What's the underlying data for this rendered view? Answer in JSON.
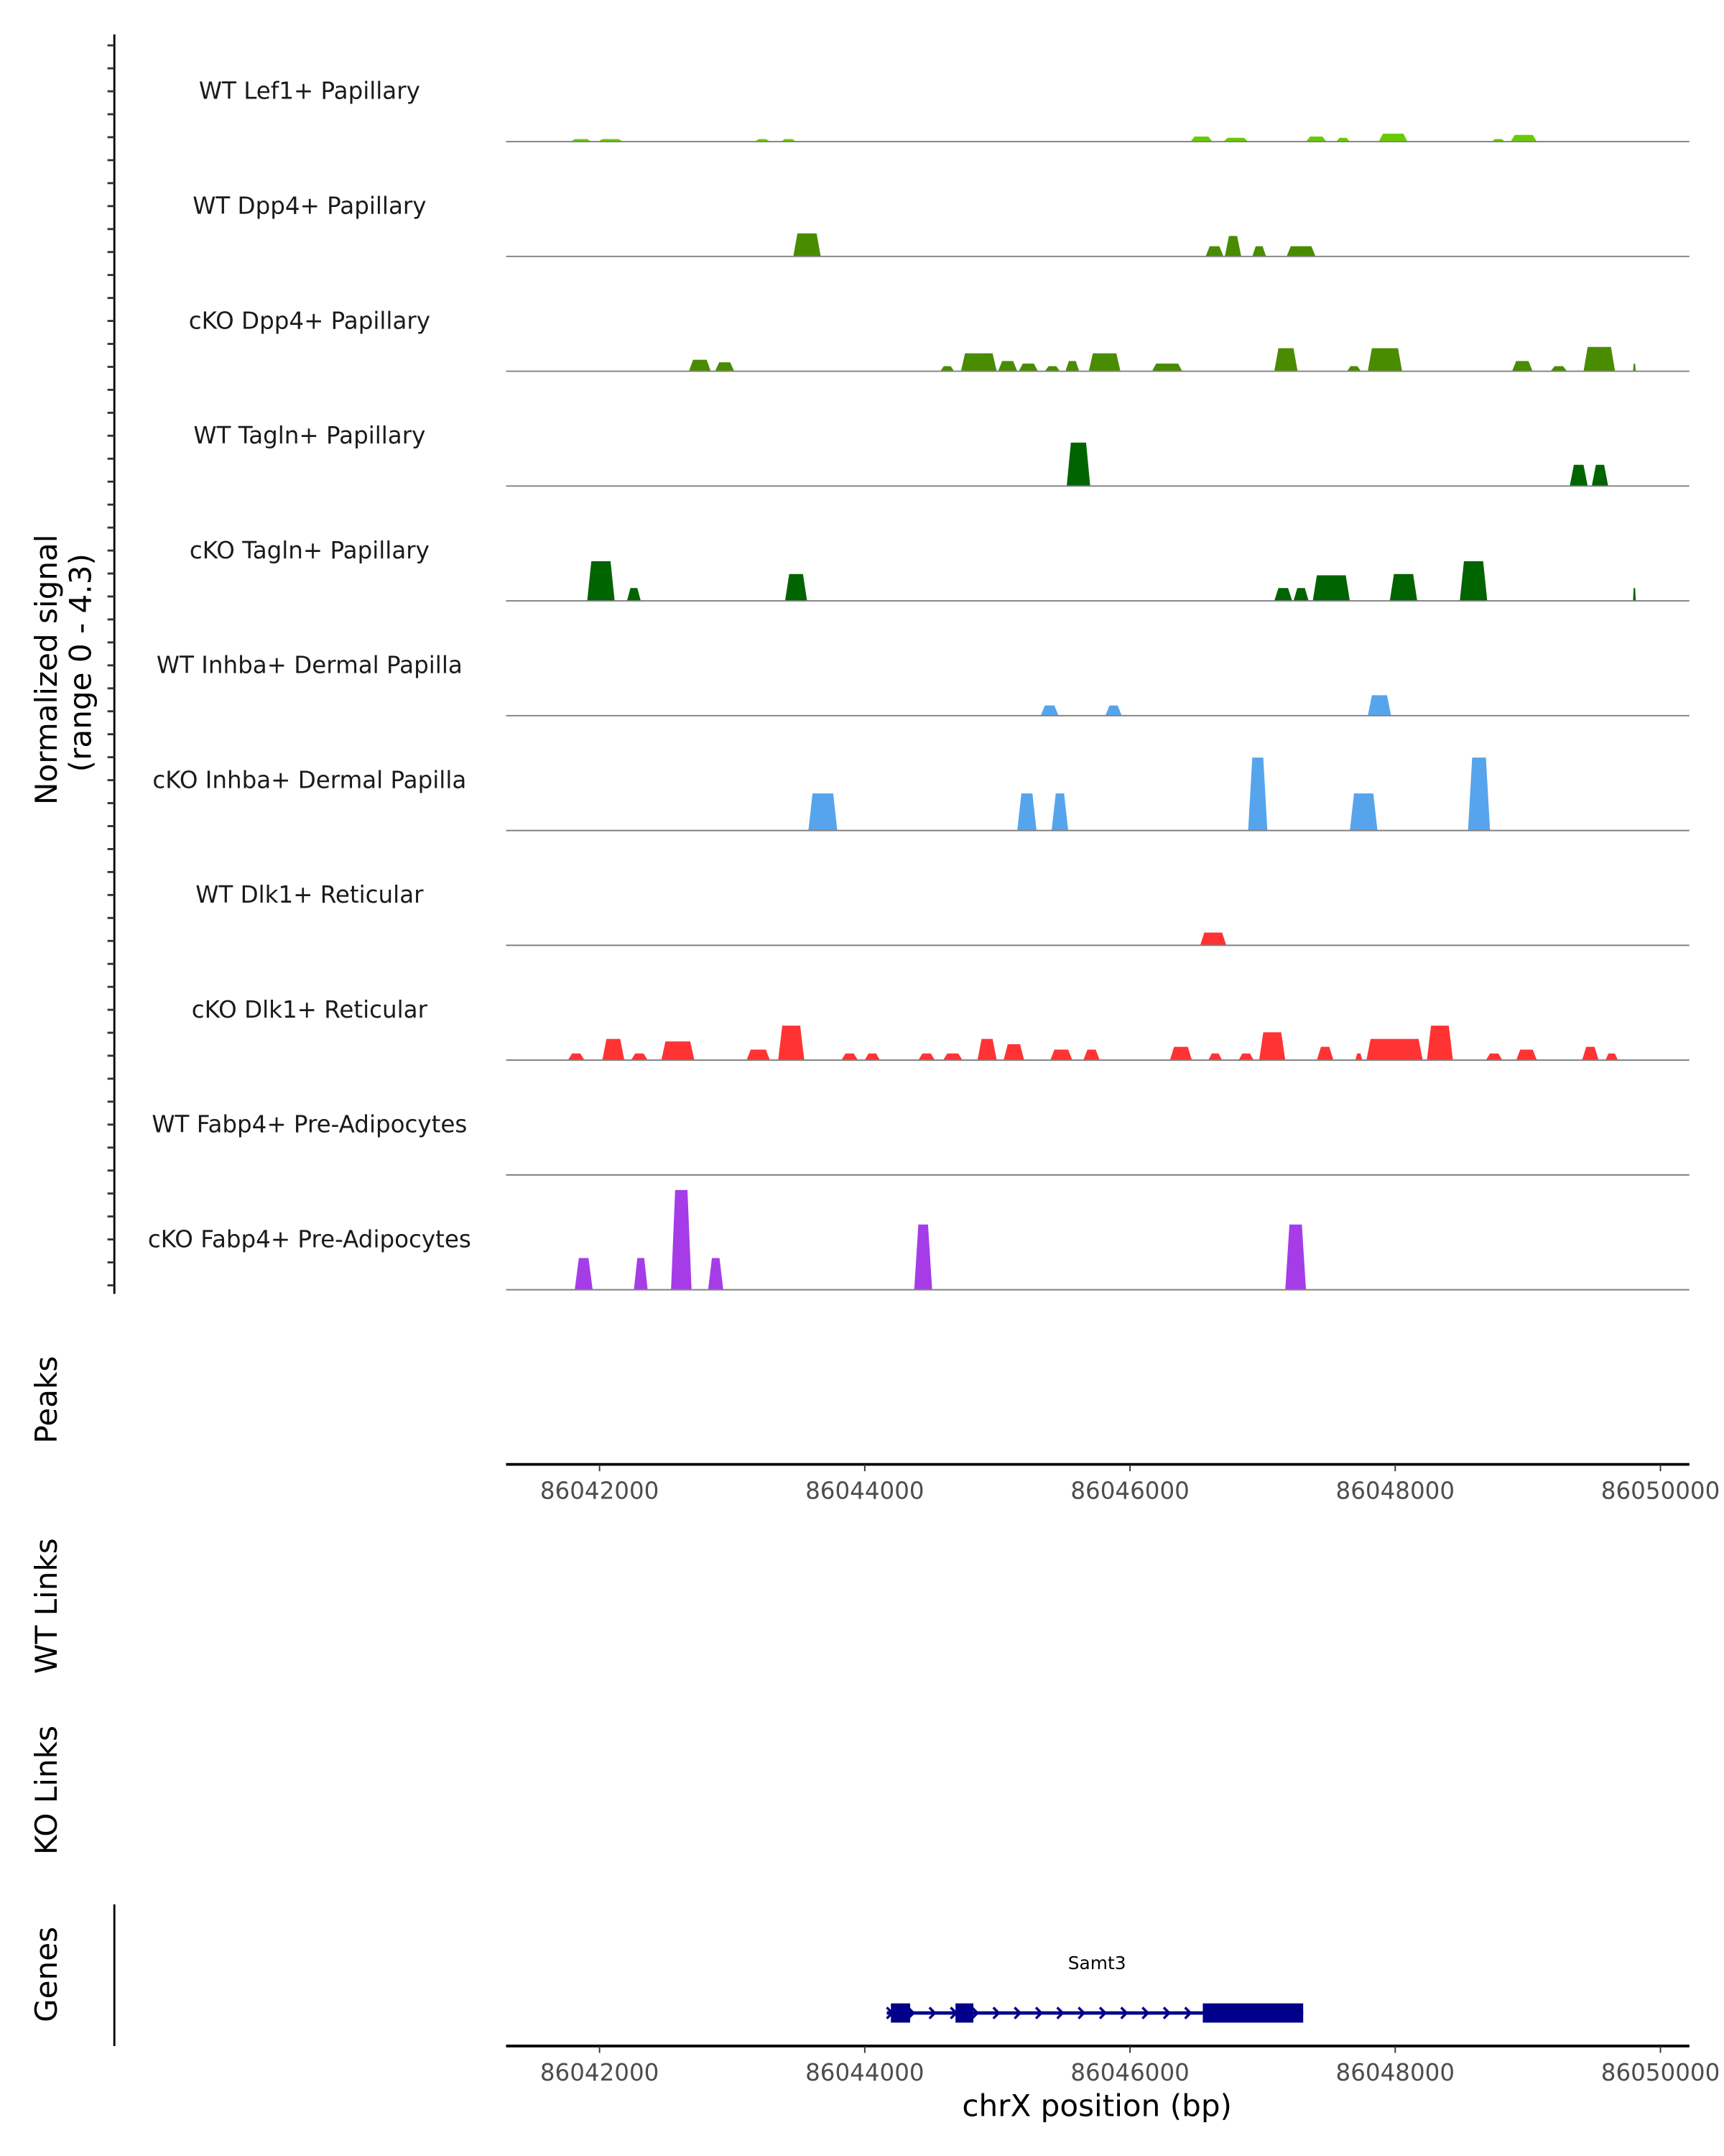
{
  "chart_data": {
    "type": "area",
    "title": "",
    "ylabel": [
      "Normalized signal",
      "(range 0 - 4.3)"
    ],
    "ylim": [
      0,
      4.3
    ],
    "xlabel": "chrX position (bp)",
    "xlim": [
      86041295,
      86050218
    ],
    "xticks": [
      86042000,
      86044000,
      86046000,
      86048000,
      86050000
    ],
    "xtick_labels": [
      "86042000",
      "86044000",
      "86046000",
      "86048000",
      "86050000"
    ],
    "offset": 86000000,
    "side_labels": {
      "peaks": "Peaks",
      "wt_links": "WT Links",
      "ko_links": "KO Links",
      "genes": "Genes"
    },
    "tracks": [
      {
        "name": "WT Lef1+ Papillary",
        "color": "#66CC00",
        "peaks": [
          [
            41782,
            41938,
            0.1
          ],
          [
            41990,
            42176,
            0.1
          ],
          [
            43171,
            43285,
            0.1
          ],
          [
            43368,
            43482,
            0.1
          ],
          [
            46456,
            46622,
            0.2
          ],
          [
            46705,
            46891,
            0.15
          ],
          [
            47327,
            47482,
            0.2
          ],
          [
            47555,
            47658,
            0.15
          ],
          [
            47876,
            48093,
            0.31
          ],
          [
            48726,
            48829,
            0.1
          ],
          [
            48870,
            49068,
            0.26
          ]
        ]
      },
      {
        "name": "WT Dpp4+ Papillary",
        "color": "#4A8C00",
        "peaks": [
          [
            43461,
            43668,
            0.9
          ],
          [
            46570,
            46705,
            0.4
          ],
          [
            46715,
            46839,
            0.8
          ],
          [
            46922,
            47026,
            0.4
          ],
          [
            47181,
            47399,
            0.4
          ]
        ]
      },
      {
        "name": "cKO Dpp4+ Papillary",
        "color": "#4A8C00",
        "peaks": [
          [
            42674,
            42839,
            0.45
          ],
          [
            42871,
            43016,
            0.35
          ],
          [
            44570,
            44674,
            0.2
          ],
          [
            44725,
            44995,
            0.7
          ],
          [
            45005,
            45150,
            0.4
          ],
          [
            45161,
            45306,
            0.3
          ],
          [
            45358,
            45472,
            0.2
          ],
          [
            45513,
            45617,
            0.4
          ],
          [
            45689,
            45928,
            0.7
          ],
          [
            46166,
            46394,
            0.3
          ],
          [
            47088,
            47264,
            0.9
          ],
          [
            47637,
            47741,
            0.2
          ],
          [
            47793,
            48052,
            0.9
          ],
          [
            48881,
            49036,
            0.4
          ],
          [
            49171,
            49296,
            0.2
          ],
          [
            49420,
            49658,
            0.95
          ],
          [
            49793,
            49814,
            0.3
          ]
        ]
      },
      {
        "name": "WT Tagln+ Papillary",
        "color": "#006400",
        "peaks": [
          [
            45523,
            45700,
            1.7
          ],
          [
            49316,
            49451,
            0.83
          ],
          [
            49482,
            49606,
            0.83
          ]
        ]
      },
      {
        "name": "cKO Tagln+ Papillary",
        "color": "#006400",
        "peaks": [
          [
            41907,
            42114,
            1.55
          ],
          [
            42207,
            42311,
            0.5
          ],
          [
            43399,
            43565,
            1.05
          ],
          [
            47088,
            47223,
            0.5
          ],
          [
            47233,
            47347,
            0.5
          ],
          [
            47378,
            47658,
            1.0
          ],
          [
            47959,
            48166,
            1.05
          ],
          [
            48487,
            48694,
            1.55
          ],
          [
            49793,
            49814,
            0.5
          ]
        ]
      },
      {
        "name": "WT Inhba+ Dermal Papilla",
        "color": "#56A5EC",
        "peaks": [
          [
            45327,
            45461,
            0.4
          ],
          [
            45814,
            45938,
            0.4
          ],
          [
            47793,
            47969,
            0.8
          ]
        ]
      },
      {
        "name": "cKO Inhba+ Dermal Papilla",
        "color": "#56A5EC",
        "peaks": [
          [
            43575,
            43793,
            1.45
          ],
          [
            45150,
            45295,
            1.45
          ],
          [
            45409,
            45534,
            1.45
          ],
          [
            46891,
            47036,
            2.85
          ],
          [
            47658,
            47866,
            1.45
          ],
          [
            48549,
            48715,
            2.85
          ]
        ]
      },
      {
        "name": "WT Dlk1+ Reticular",
        "color": "#FF3333",
        "peaks": [
          [
            46529,
            46726,
            0.5
          ]
        ]
      },
      {
        "name": "cKO Dlk1+ Reticular",
        "color": "#FF3333",
        "peaks": [
          [
            41762,
            41886,
            0.26
          ],
          [
            42021,
            42187,
            0.83
          ],
          [
            42238,
            42363,
            0.26
          ],
          [
            42466,
            42715,
            0.73
          ],
          [
            43109,
            43285,
            0.41
          ],
          [
            43347,
            43544,
            1.35
          ],
          [
            43824,
            43948,
            0.26
          ],
          [
            44000,
            44114,
            0.26
          ],
          [
            44404,
            44529,
            0.26
          ],
          [
            44591,
            44736,
            0.26
          ],
          [
            44850,
            44995,
            0.83
          ],
          [
            45047,
            45202,
            0.62
          ],
          [
            45399,
            45565,
            0.41
          ],
          [
            45648,
            45772,
            0.41
          ],
          [
            46301,
            46467,
            0.52
          ],
          [
            46591,
            46694,
            0.26
          ],
          [
            46819,
            46933,
            0.26
          ],
          [
            46974,
            47171,
            1.09
          ],
          [
            47409,
            47534,
            0.52
          ],
          [
            47700,
            47751,
            0.26
          ],
          [
            47783,
            48207,
            0.83
          ],
          [
            48239,
            48435,
            1.35
          ],
          [
            48684,
            48808,
            0.26
          ],
          [
            48912,
            49068,
            0.41
          ],
          [
            49409,
            49534,
            0.52
          ],
          [
            49585,
            49679,
            0.26
          ]
        ]
      },
      {
        "name": "WT Fabp4+ Pre-Adipocytes",
        "color": "#A63CE8",
        "peaks": []
      },
      {
        "name": "cKO Fabp4+ Pre-Adipocytes",
        "color": "#A63CE8",
        "peaks": [
          [
            41813,
            41948,
            1.24
          ],
          [
            42259,
            42363,
            1.24
          ],
          [
            42539,
            42694,
            3.9
          ],
          [
            42819,
            42933,
            1.24
          ],
          [
            44373,
            44508,
            2.55
          ],
          [
            47171,
            47327,
            2.55
          ]
        ]
      }
    ],
    "gene": {
      "name": "Samt3",
      "color": "#00008B",
      "start": 44166,
      "end": 47306,
      "strand": "+",
      "exons": [
        [
          44197,
          44342
        ],
        [
          44684,
          44819
        ],
        [
          46549,
          47306
        ]
      ]
    }
  }
}
